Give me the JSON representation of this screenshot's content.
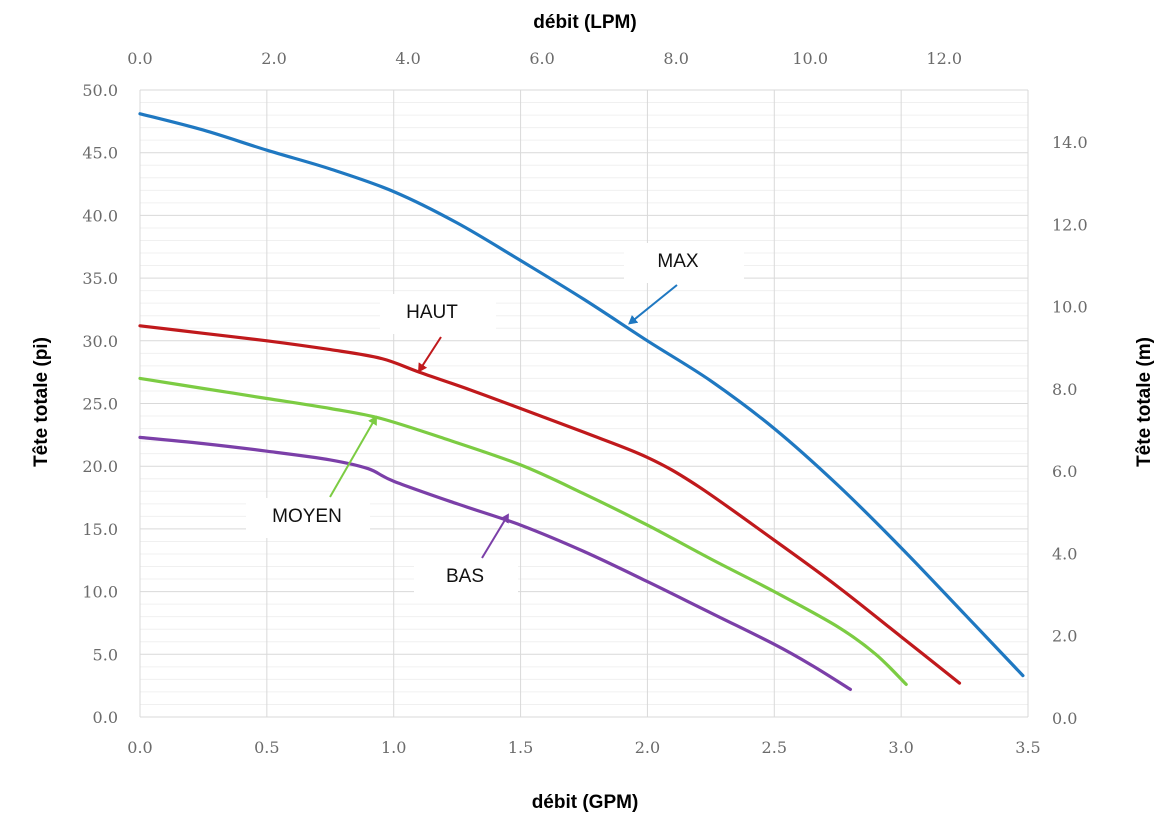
{
  "chart_data": {
    "type": "line",
    "x_bottom": {
      "label": "débit (GPM)",
      "range": [
        0,
        3.5
      ],
      "ticks": [
        "0.0",
        "0.5",
        "1.0",
        "1.5",
        "2.0",
        "2.5",
        "3.0",
        "3.5"
      ]
    },
    "x_top": {
      "label": "débit (LPM)",
      "range": [
        0,
        13.25
      ],
      "ticks": [
        "0.0",
        "2.0",
        "4.0",
        "6.0",
        "8.0",
        "10.0",
        "12.0"
      ]
    },
    "y_left": {
      "label": "Tête totale (pi)",
      "range": [
        0,
        50
      ],
      "ticks": [
        "0.0",
        "5.0",
        "10.0",
        "15.0",
        "20.0",
        "25.0",
        "30.0",
        "35.0",
        "40.0",
        "45.0",
        "50.0"
      ]
    },
    "y_right": {
      "label": "Tête totale (m)",
      "range": [
        0,
        15.24
      ],
      "ticks": [
        "0.0",
        "2.0",
        "4.0",
        "6.0",
        "8.0",
        "10.0",
        "12.0",
        "14.0"
      ]
    },
    "grid": true,
    "series": [
      {
        "name": "MAX",
        "color": "#1f78c1",
        "x": [
          0,
          0.25,
          0.5,
          0.75,
          1.0,
          1.25,
          1.5,
          1.75,
          2.0,
          2.25,
          2.5,
          2.75,
          3.0,
          3.25,
          3.48
        ],
        "y": [
          48.1,
          46.8,
          45.2,
          43.7,
          41.9,
          39.4,
          36.4,
          33.3,
          30.0,
          26.8,
          23.0,
          18.5,
          13.5,
          8.2,
          3.3
        ]
      },
      {
        "name": "HAUT",
        "color": "#c0191c",
        "x": [
          0,
          0.25,
          0.5,
          0.75,
          0.95,
          1.1,
          1.3,
          1.5,
          1.75,
          2.0,
          2.2,
          2.5,
          2.75,
          3.0,
          3.23
        ],
        "y": [
          31.2,
          30.6,
          30.0,
          29.3,
          28.6,
          27.5,
          26.1,
          24.6,
          22.7,
          20.7,
          18.4,
          14.1,
          10.4,
          6.4,
          2.7
        ]
      },
      {
        "name": "MOYEN",
        "color": "#7ccc43",
        "x": [
          0,
          0.25,
          0.5,
          0.75,
          0.95,
          1.2,
          1.5,
          1.75,
          2.0,
          2.25,
          2.5,
          2.75,
          2.9,
          3.02
        ],
        "y": [
          27.0,
          26.2,
          25.4,
          24.6,
          23.8,
          22.2,
          20.1,
          17.8,
          15.3,
          12.6,
          10.0,
          7.2,
          5.0,
          2.6
        ]
      },
      {
        "name": "BAS",
        "color": "#7b3fa8",
        "x": [
          0,
          0.25,
          0.5,
          0.75,
          0.9,
          1.0,
          1.25,
          1.5,
          1.75,
          2.0,
          2.25,
          2.5,
          2.65,
          2.8
        ],
        "y": [
          22.3,
          21.8,
          21.2,
          20.5,
          19.8,
          18.8,
          17.0,
          15.3,
          13.2,
          10.8,
          8.3,
          5.8,
          4.1,
          2.2
        ]
      }
    ],
    "annotations": [
      {
        "text": "MAX",
        "series": "MAX",
        "arrow_to": [
          1.93,
          31.4
        ]
      },
      {
        "text": "HAUT",
        "series": "HAUT",
        "arrow_to": [
          1.1,
          27.6
        ]
      },
      {
        "text": "MOYEN",
        "series": "MOYEN",
        "arrow_to": [
          0.93,
          23.9
        ]
      },
      {
        "text": "BAS",
        "series": "BAS",
        "arrow_to": [
          1.45,
          16.1
        ]
      }
    ]
  }
}
